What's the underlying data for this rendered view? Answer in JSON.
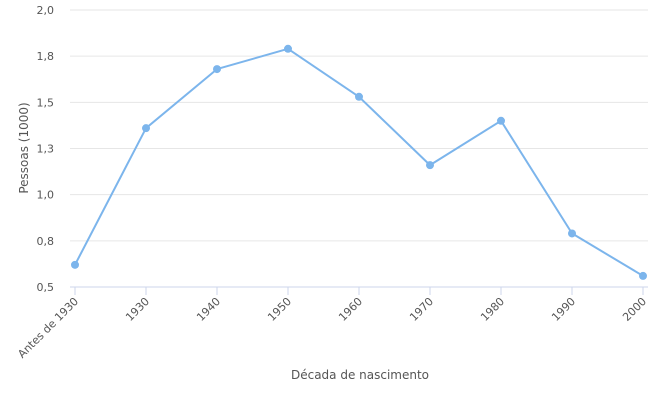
{
  "chart_data": {
    "type": "line",
    "categories": [
      "Antes de 1930",
      "1930",
      "1940",
      "1950",
      "1960",
      "1970",
      "1980",
      "1990",
      "2000"
    ],
    "series": [
      {
        "values": [
          0.62,
          1.36,
          1.68,
          1.79,
          1.53,
          1.16,
          1.4,
          0.79,
          0.56
        ],
        "color": "#7cb5ec"
      }
    ],
    "xlabel": "Década de nascimento",
    "ylabel": "Pessoas (1000)",
    "ylim": [
      0.5,
      2.0
    ],
    "y_ticks": [
      "0,5",
      "0,8",
      "1,0",
      "1,3",
      "1,5",
      "1,8",
      "2,0"
    ],
    "grid": "horizontal",
    "legend": "none"
  }
}
